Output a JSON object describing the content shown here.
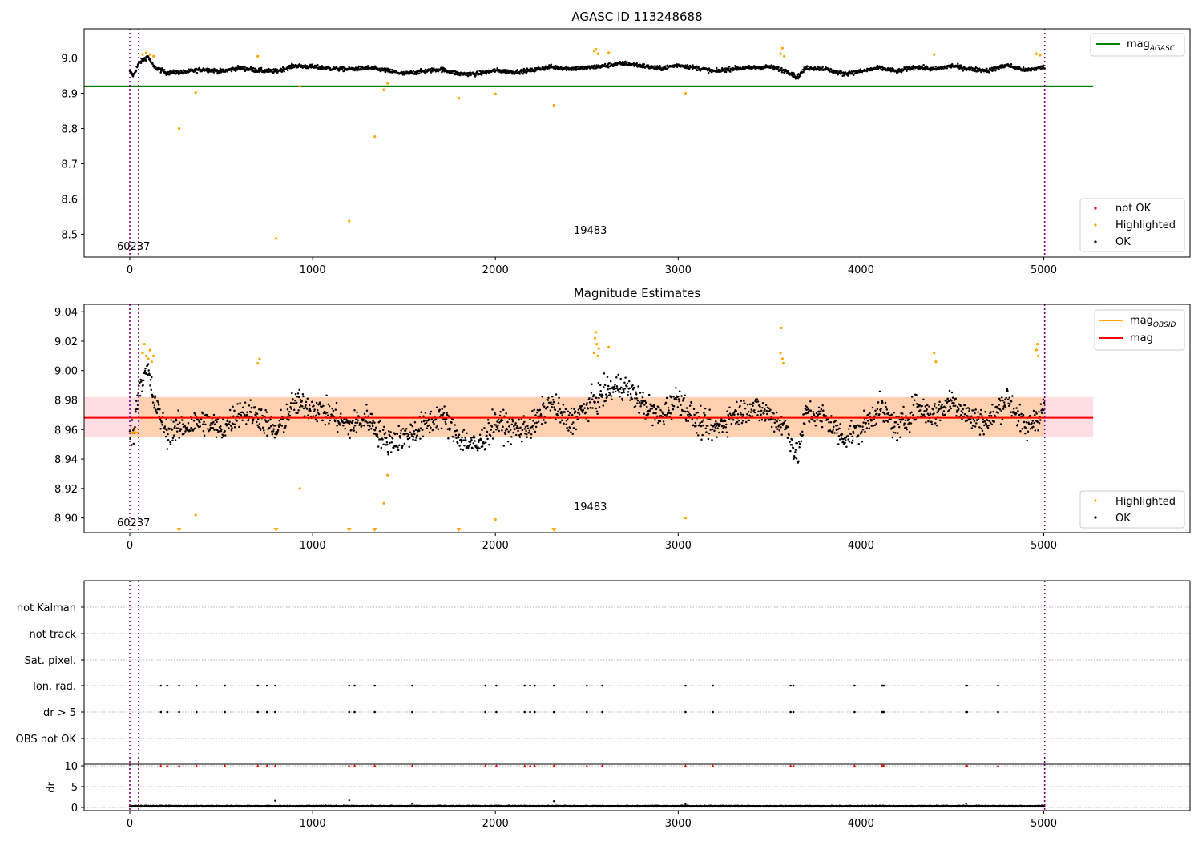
{
  "chart_data": [
    {
      "type": "scatter",
      "title": "AGASC ID 113248688",
      "xlim": [
        -250,
        5800
      ],
      "ylim": [
        8.435,
        9.083
      ],
      "xticks": [
        0,
        1000,
        2000,
        3000,
        4000,
        5000
      ],
      "yticks": [
        8.5,
        8.6,
        8.7,
        8.8,
        8.9,
        9.0
      ],
      "grid": false,
      "hlines": [
        {
          "name": "mag_AGASC",
          "y": 8.92,
          "x0": -250,
          "x1": 5270,
          "color": "#008000"
        }
      ],
      "vlines": [
        0,
        48,
        5005
      ],
      "annotations": [
        {
          "text": "60237",
          "x": 28,
          "y": 8.455
        },
        {
          "text": "19483",
          "x": 2530,
          "y": 8.5
        }
      ],
      "ok_series": {
        "name": "OK",
        "color": "#000000",
        "segments": [
          [
            0,
            8.96
          ],
          [
            20,
            8.95
          ],
          [
            48,
            8.985
          ],
          [
            100,
            9.005
          ],
          [
            130,
            8.975
          ],
          [
            200,
            8.958
          ],
          [
            300,
            8.96
          ],
          [
            400,
            8.968
          ],
          [
            500,
            8.962
          ],
          [
            600,
            8.972
          ],
          [
            700,
            8.965
          ],
          [
            800,
            8.962
          ],
          [
            900,
            8.978
          ],
          [
            1000,
            8.975
          ],
          [
            1100,
            8.97
          ],
          [
            1200,
            8.968
          ],
          [
            1300,
            8.972
          ],
          [
            1400,
            8.965
          ],
          [
            1500,
            8.955
          ],
          [
            1600,
            8.962
          ],
          [
            1700,
            8.968
          ],
          [
            1800,
            8.955
          ],
          [
            1900,
            8.955
          ],
          [
            2000,
            8.965
          ],
          [
            2100,
            8.96
          ],
          [
            2200,
            8.965
          ],
          [
            2300,
            8.975
          ],
          [
            2400,
            8.97
          ],
          [
            2500,
            8.972
          ],
          [
            2600,
            8.978
          ],
          [
            2700,
            8.985
          ],
          [
            2800,
            8.978
          ],
          [
            2900,
            8.97
          ],
          [
            3000,
            8.98
          ],
          [
            3100,
            8.972
          ],
          [
            3200,
            8.962
          ],
          [
            3300,
            8.97
          ],
          [
            3400,
            8.972
          ],
          [
            3500,
            8.975
          ],
          [
            3600,
            8.962
          ],
          [
            3650,
            8.945
          ],
          [
            3700,
            8.972
          ],
          [
            3800,
            8.97
          ],
          [
            3900,
            8.955
          ],
          [
            4000,
            8.962
          ],
          [
            4100,
            8.972
          ],
          [
            4200,
            8.962
          ],
          [
            4300,
            8.975
          ],
          [
            4400,
            8.968
          ],
          [
            4500,
            8.978
          ],
          [
            4600,
            8.968
          ],
          [
            4700,
            8.965
          ],
          [
            4800,
            8.98
          ],
          [
            4900,
            8.965
          ],
          [
            5005,
            8.975
          ]
        ]
      },
      "highlighted": {
        "name": "Highlighted",
        "color": "#ffa500",
        "points": [
          [
            70,
            9.01
          ],
          [
            90,
            9.015
          ],
          [
            110,
            9.01
          ],
          [
            130,
            9.005
          ],
          [
            270,
            8.8
          ],
          [
            360,
            8.902
          ],
          [
            700,
            9.005
          ],
          [
            800,
            8.488
          ],
          [
            930,
            8.92
          ],
          [
            1200,
            8.537
          ],
          [
            1340,
            8.777
          ],
          [
            1390,
            8.91
          ],
          [
            1410,
            8.928
          ],
          [
            1800,
            8.886
          ],
          [
            2000,
            8.898
          ],
          [
            2320,
            8.866
          ],
          [
            2540,
            9.02
          ],
          [
            2550,
            9.025
          ],
          [
            2560,
            9.012
          ],
          [
            2620,
            9.015
          ],
          [
            3040,
            8.9
          ],
          [
            3560,
            9.012
          ],
          [
            3570,
            9.028
          ],
          [
            3580,
            9.005
          ],
          [
            4400,
            9.01
          ],
          [
            4960,
            9.012
          ],
          [
            4980,
            9.008
          ]
        ]
      },
      "legends": [
        {
          "position": "upper right",
          "items": [
            {
              "label": "mag",
              "sub": "AGASC",
              "kind": "line",
              "color": "#008000"
            }
          ]
        },
        {
          "position": "lower right",
          "items": [
            {
              "label": "not OK",
              "kind": "dot",
              "color": "#ff0000"
            },
            {
              "label": "Highlighted",
              "kind": "dot",
              "color": "#ffa500"
            },
            {
              "label": "OK",
              "kind": "dot",
              "color": "#000000"
            }
          ]
        }
      ]
    },
    {
      "type": "scatter",
      "title": "Magnitude Estimates",
      "xlim": [
        -250,
        5800
      ],
      "ylim": [
        8.89,
        9.045
      ],
      "xticks": [
        0,
        1000,
        2000,
        3000,
        4000,
        5000
      ],
      "yticks": [
        8.9,
        8.92,
        8.94,
        8.96,
        8.98,
        9.0,
        9.02,
        9.04
      ],
      "ytick_labels": [
        "8.90",
        "8.92",
        "8.94",
        "8.96",
        "8.98",
        "9.00",
        "9.02",
        "9.04"
      ],
      "grid": false,
      "mag": {
        "name": "mag",
        "y": 8.968,
        "x0": -250,
        "x1": 5270,
        "color": "#ff0000",
        "band": [
          8.955,
          8.982
        ],
        "band_color": "#ffb6c1"
      },
      "mag_obsid": {
        "name": "mag_OBSID",
        "color": "#ffa500",
        "segments": [
          {
            "x0": 0,
            "x1": 48,
            "y": 8.958,
            "band": [
              8.955,
              8.962
            ]
          },
          {
            "x0": 48,
            "x1": 5005,
            "y": 8.968,
            "band": [
              8.955,
              8.982
            ]
          }
        ]
      },
      "vlines": [
        0,
        48,
        5005
      ],
      "annotations": [
        {
          "text": "60237",
          "x": 28,
          "y": 8.895
        },
        {
          "text": "19483",
          "x": 2530,
          "y": 8.907
        }
      ],
      "ok_series": {
        "name": "OK",
        "color": "#000000",
        "segments": [
          [
            0,
            8.962
          ],
          [
            20,
            8.955
          ],
          [
            48,
            8.99
          ],
          [
            100,
            9.0
          ],
          [
            130,
            8.98
          ],
          [
            200,
            8.958
          ],
          [
            300,
            8.962
          ],
          [
            400,
            8.966
          ],
          [
            500,
            8.96
          ],
          [
            600,
            8.972
          ],
          [
            700,
            8.97
          ],
          [
            800,
            8.958
          ],
          [
            900,
            8.978
          ],
          [
            1000,
            8.975
          ],
          [
            1100,
            8.97
          ],
          [
            1200,
            8.962
          ],
          [
            1300,
            8.968
          ],
          [
            1400,
            8.952
          ],
          [
            1500,
            8.955
          ],
          [
            1600,
            8.962
          ],
          [
            1700,
            8.97
          ],
          [
            1800,
            8.955
          ],
          [
            1900,
            8.948
          ],
          [
            2000,
            8.965
          ],
          [
            2100,
            8.96
          ],
          [
            2200,
            8.962
          ],
          [
            2300,
            8.978
          ],
          [
            2400,
            8.965
          ],
          [
            2500,
            8.975
          ],
          [
            2600,
            8.985
          ],
          [
            2700,
            8.99
          ],
          [
            2800,
            8.978
          ],
          [
            2900,
            8.968
          ],
          [
            3000,
            8.982
          ],
          [
            3100,
            8.965
          ],
          [
            3200,
            8.96
          ],
          [
            3300,
            8.97
          ],
          [
            3400,
            8.975
          ],
          [
            3500,
            8.97
          ],
          [
            3600,
            8.96
          ],
          [
            3650,
            8.94
          ],
          [
            3700,
            8.972
          ],
          [
            3800,
            8.968
          ],
          [
            3900,
            8.955
          ],
          [
            4000,
            8.96
          ],
          [
            4100,
            8.975
          ],
          [
            4200,
            8.96
          ],
          [
            4300,
            8.975
          ],
          [
            4400,
            8.97
          ],
          [
            4500,
            8.98
          ],
          [
            4600,
            8.968
          ],
          [
            4700,
            8.965
          ],
          [
            4800,
            8.982
          ],
          [
            4900,
            8.96
          ],
          [
            5005,
            8.975
          ]
        ]
      },
      "highlighted": {
        "name": "Highlighted",
        "color": "#ffa500",
        "points": [
          [
            70,
            9.012
          ],
          [
            80,
            9.018
          ],
          [
            90,
            9.01
          ],
          [
            100,
            9.008
          ],
          [
            110,
            9.014
          ],
          [
            120,
            9.006
          ],
          [
            130,
            9.01
          ],
          [
            700,
            9.005
          ],
          [
            710,
            9.008
          ],
          [
            360,
            8.902
          ],
          [
            930,
            8.92
          ],
          [
            1390,
            8.91
          ],
          [
            1410,
            8.929
          ],
          [
            2000,
            8.899
          ],
          [
            2540,
            9.012
          ],
          [
            2545,
            9.022
          ],
          [
            2550,
            9.026
          ],
          [
            2555,
            9.018
          ],
          [
            2560,
            9.01
          ],
          [
            2565,
            9.015
          ],
          [
            2620,
            9.016
          ],
          [
            3040,
            8.9
          ],
          [
            3560,
            9.012
          ],
          [
            3565,
            9.029
          ],
          [
            3570,
            9.008
          ],
          [
            3575,
            9.005
          ],
          [
            4400,
            9.012
          ],
          [
            4410,
            9.006
          ],
          [
            4960,
            9.014
          ],
          [
            4965,
            9.018
          ],
          [
            4970,
            9.01
          ],
          [
            10,
            8.958
          ],
          [
            30,
            8.958
          ]
        ]
      },
      "lower_arrows": {
        "color": "#ffa500",
        "x": [
          270,
          800,
          1200,
          1340,
          1800,
          2320
        ]
      },
      "legends": [
        {
          "position": "upper right",
          "items": [
            {
              "label": "mag",
              "sub": "OBSID",
              "kind": "line",
              "color": "#ffa500"
            },
            {
              "label": "mag",
              "kind": "line",
              "color": "#ff0000"
            }
          ]
        },
        {
          "position": "lower right",
          "items": [
            {
              "label": "Highlighted",
              "kind": "dot",
              "color": "#ffa500"
            },
            {
              "label": "OK",
              "kind": "dot",
              "color": "#000000"
            }
          ]
        }
      ]
    },
    {
      "type": "scatter",
      "title": "",
      "xlim": [
        -250,
        5800
      ],
      "ycategories": [
        "not Kalman",
        "not track",
        "Sat. pixel.",
        "Ion. rad.",
        "dr > 5",
        "OBS not OK"
      ],
      "grid": true,
      "vlines": [
        0,
        48,
        5005
      ],
      "flag_points": {
        "Ion. rad.": [
          170,
          205,
          270,
          365,
          520,
          700,
          750,
          795,
          1200,
          1230,
          1340,
          1545,
          1945,
          2005,
          2160,
          2190,
          2215,
          2320,
          2500,
          2585,
          3040,
          3190,
          3615,
          3630,
          3965,
          4115,
          4120,
          4125,
          4575,
          4580,
          4750
        ],
        "dr > 5": [
          170,
          205,
          270,
          365,
          520,
          700,
          750,
          795,
          1200,
          1230,
          1340,
          1545,
          1945,
          2005,
          2160,
          2190,
          2215,
          2320,
          2500,
          2585,
          3040,
          3190,
          3615,
          3630,
          3965,
          4115,
          4120,
          4125,
          4575,
          4580,
          4750
        ]
      }
    },
    {
      "type": "scatter",
      "title": "",
      "ylabel": "dr",
      "xlim": [
        -250,
        5800
      ],
      "ylim": [
        -0.5,
        10.5
      ],
      "xticks": [
        0,
        1000,
        2000,
        3000,
        4000,
        5000
      ],
      "yticks": [
        0,
        5,
        10
      ],
      "grid": true,
      "vlines": [
        0,
        48,
        5005
      ],
      "dr_baseline": 0.3,
      "dr_outliers": [
        [
          795,
          1.6
        ],
        [
          1200,
          1.7
        ],
        [
          2320,
          1.5
        ],
        [
          1545,
          0.9
        ],
        [
          3040,
          0.8
        ],
        [
          4575,
          0.9
        ]
      ],
      "capped_at_10": {
        "color": "#ff0000",
        "x": [
          170,
          205,
          270,
          365,
          520,
          700,
          750,
          795,
          1200,
          1230,
          1340,
          1545,
          1945,
          2005,
          2160,
          2190,
          2215,
          2320,
          2500,
          2585,
          3040,
          3190,
          3615,
          3630,
          3965,
          4115,
          4120,
          4125,
          4575,
          4580,
          4750
        ]
      }
    }
  ]
}
